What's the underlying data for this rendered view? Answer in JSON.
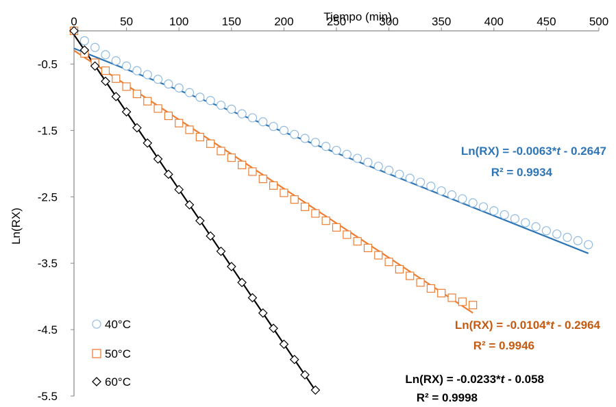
{
  "chart_data": {
    "type": "scatter",
    "title": "",
    "xlabel": "Tiempo (min)",
    "ylabel": "Ln(RX)",
    "xlim": [
      0,
      500
    ],
    "ylim": [
      -5.5,
      0
    ],
    "x_ticks": [
      "0",
      "50",
      "100",
      "150",
      "200",
      "250",
      "300",
      "350",
      "400",
      "450",
      "500"
    ],
    "y_ticks": [
      "-0.5",
      "-1.5",
      "-2.5",
      "-3.5",
      "-4.5",
      "-5.5"
    ],
    "grid": false,
    "legend_position": "bottom-left",
    "series": [
      {
        "name": "40°C",
        "color": "#2e75b6",
        "marker": "circle",
        "x": [
          0,
          10,
          20,
          30,
          40,
          50,
          60,
          70,
          80,
          90,
          100,
          110,
          120,
          130,
          140,
          150,
          160,
          170,
          180,
          190,
          200,
          210,
          220,
          230,
          240,
          250,
          260,
          270,
          280,
          290,
          300,
          310,
          320,
          330,
          340,
          350,
          360,
          370,
          380,
          390,
          400,
          410,
          420,
          430,
          440,
          450,
          460,
          470,
          480,
          490
        ],
        "y": [
          0.0,
          -0.15,
          -0.25,
          -0.36,
          -0.45,
          -0.53,
          -0.6,
          -0.66,
          -0.73,
          -0.8,
          -0.86,
          -0.93,
          -1.0,
          -1.05,
          -1.12,
          -1.18,
          -1.25,
          -1.31,
          -1.37,
          -1.44,
          -1.5,
          -1.56,
          -1.62,
          -1.68,
          -1.74,
          -1.8,
          -1.86,
          -1.92,
          -1.98,
          -2.04,
          -2.1,
          -2.16,
          -2.22,
          -2.28,
          -2.34,
          -2.41,
          -2.47,
          -2.53,
          -2.59,
          -2.65,
          -2.71,
          -2.77,
          -2.83,
          -2.89,
          -2.95,
          -3.01,
          -3.06,
          -3.11,
          -3.16,
          -3.22
        ],
        "fit": {
          "slope": -0.0063,
          "intercept": -0.2647,
          "x_range": [
            0,
            490
          ]
        },
        "equation_label": "Ln(RX) = -0.0063*",
        "equation_var": "t",
        "equation_suffix": " - 0.2647",
        "r2_label": "R² = 0.9934"
      },
      {
        "name": "50°C",
        "color": "#ed7d31",
        "marker": "square",
        "x": [
          0,
          10,
          20,
          30,
          40,
          50,
          60,
          70,
          80,
          90,
          100,
          110,
          120,
          130,
          140,
          150,
          160,
          170,
          180,
          190,
          200,
          210,
          220,
          230,
          240,
          250,
          260,
          270,
          280,
          290,
          300,
          310,
          320,
          330,
          340,
          350,
          360,
          370,
          380
        ],
        "y": [
          0.0,
          -0.34,
          -0.48,
          -0.6,
          -0.72,
          -0.84,
          -0.95,
          -1.06,
          -1.17,
          -1.28,
          -1.39,
          -1.49,
          -1.6,
          -1.7,
          -1.81,
          -1.91,
          -2.02,
          -2.12,
          -2.23,
          -2.33,
          -2.44,
          -2.54,
          -2.65,
          -2.75,
          -2.86,
          -2.96,
          -3.07,
          -3.17,
          -3.27,
          -3.38,
          -3.48,
          -3.59,
          -3.69,
          -3.79,
          -3.88,
          -3.95,
          -4.02,
          -4.08,
          -4.13
        ],
        "fit": {
          "slope": -0.0104,
          "intercept": -0.2964,
          "x_range": [
            0,
            380
          ]
        },
        "equation_label": "Ln(RX) = -0.0104*",
        "equation_var": "t",
        "equation_suffix": " - 0.2964",
        "r2_label": "R² = 0.9946"
      },
      {
        "name": "60°C",
        "color": "#000000",
        "marker": "diamond",
        "x": [
          0,
          10,
          20,
          30,
          40,
          50,
          60,
          70,
          80,
          90,
          100,
          110,
          120,
          130,
          140,
          150,
          160,
          170,
          180,
          190,
          200,
          210,
          220,
          230
        ],
        "y": [
          0.0,
          -0.29,
          -0.53,
          -0.76,
          -0.99,
          -1.22,
          -1.46,
          -1.69,
          -1.93,
          -2.16,
          -2.39,
          -2.62,
          -2.86,
          -3.09,
          -3.32,
          -3.55,
          -3.79,
          -4.02,
          -4.25,
          -4.48,
          -4.72,
          -4.95,
          -5.18,
          -5.41
        ],
        "fit": {
          "slope": -0.0233,
          "intercept": -0.058,
          "x_range": [
            0,
            230
          ]
        },
        "equation_label": "Ln(RX) = -0.0233*",
        "equation_var": "t",
        "equation_suffix": " - 0.058",
        "r2_label": "R² = 0.9998"
      }
    ]
  }
}
